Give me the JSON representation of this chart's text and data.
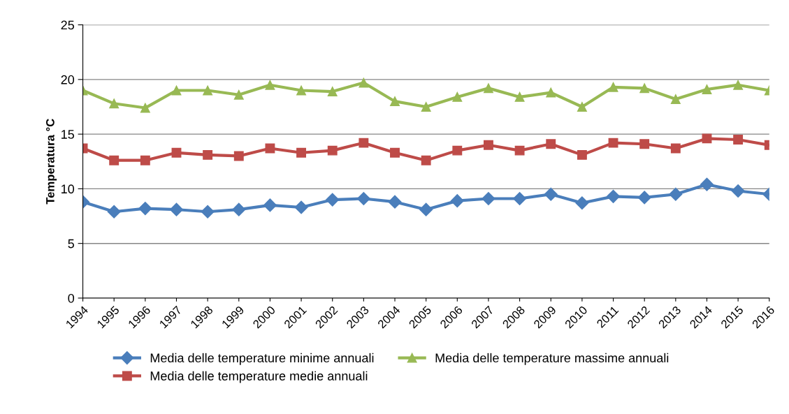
{
  "chart_data": {
    "type": "line",
    "ylabel": "Temperatura °C",
    "categories": [
      "1994",
      "1995",
      "1996",
      "1997",
      "1998",
      "1999",
      "2000",
      "2001",
      "2002",
      "2003",
      "2004",
      "2005",
      "2006",
      "2007",
      "2008",
      "2009",
      "2010",
      "2011",
      "2012",
      "2013",
      "2014",
      "2015",
      "2016"
    ],
    "series": [
      {
        "name": "Media delle temperature minime annuali",
        "color": "#4a7ebb",
        "marker": "diamond",
        "values": [
          8.8,
          7.9,
          8.2,
          8.1,
          7.9,
          8.1,
          8.5,
          8.3,
          9.0,
          9.1,
          8.8,
          8.1,
          8.9,
          9.1,
          9.1,
          9.5,
          8.7,
          9.3,
          9.2,
          9.5,
          10.4,
          9.8,
          9.5
        ]
      },
      {
        "name": "Media delle temperature medie annuali",
        "color": "#be4b48",
        "marker": "square",
        "values": [
          13.7,
          12.6,
          12.6,
          13.3,
          13.1,
          13.0,
          13.7,
          13.3,
          13.5,
          14.2,
          13.3,
          12.6,
          13.5,
          14.0,
          13.5,
          14.1,
          13.1,
          14.2,
          14.1,
          13.7,
          14.6,
          14.5,
          14.0
        ]
      },
      {
        "name": "Media delle temperature massime annuali",
        "color": "#98b954",
        "marker": "triangle",
        "values": [
          19.0,
          17.8,
          17.4,
          19.0,
          19.0,
          18.6,
          19.5,
          19.0,
          18.9,
          19.7,
          18.0,
          17.5,
          18.4,
          19.2,
          18.4,
          18.8,
          17.5,
          19.3,
          19.2,
          18.2,
          19.1,
          19.5,
          19.0
        ]
      }
    ],
    "ylim": [
      0,
      25
    ],
    "yticks": [
      0,
      5,
      10,
      15,
      20,
      25
    ],
    "grid": "y",
    "legend": "bottom",
    "line_style": "solid"
  }
}
